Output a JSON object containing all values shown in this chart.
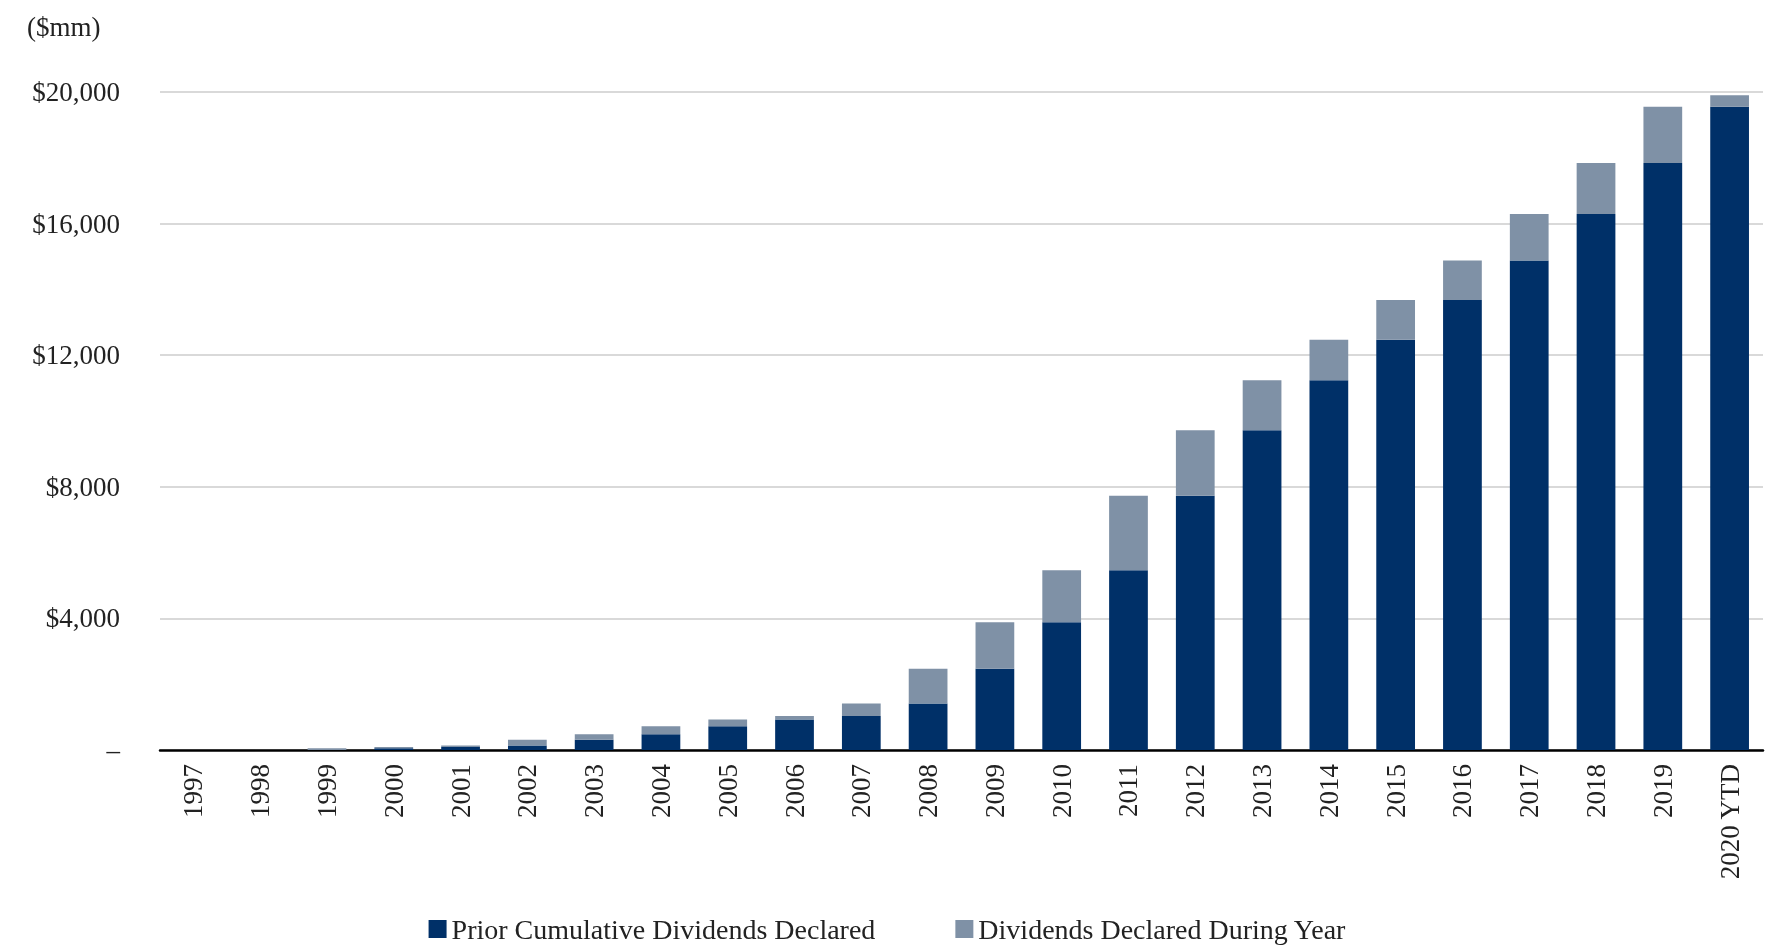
{
  "chart_data": {
    "type": "bar",
    "stacked": true,
    "ylabel": "($mm)",
    "categories": [
      "1997",
      "1998",
      "1999",
      "2000",
      "2001",
      "2002",
      "2003",
      "2004",
      "2005",
      "2006",
      "2007",
      "2008",
      "2009",
      "2010",
      "2011",
      "2012",
      "2013",
      "2014",
      "2015",
      "2016",
      "2017",
      "2018",
      "2019",
      "2020 YTD"
    ],
    "series": [
      {
        "name": "Prior Cumulative Dividends Declared",
        "color": "#003068",
        "values": [
          0,
          0,
          0,
          50,
          90,
          140,
          310,
          480,
          720,
          930,
          1030,
          1410,
          2470,
          3880,
          5460,
          7730,
          9720,
          11240,
          12470,
          13680,
          14880,
          16290,
          17840,
          19550
        ]
      },
      {
        "name": "Dividends Declared During Year",
        "color": "#7f91a6",
        "values": [
          0,
          0,
          50,
          40,
          50,
          170,
          170,
          240,
          210,
          100,
          380,
          1060,
          1410,
          1580,
          2270,
          1990,
          1520,
          1230,
          1210,
          1200,
          1410,
          1550,
          1710,
          350
        ]
      }
    ],
    "ylim": [
      0,
      20000
    ],
    "yticks": [
      {
        "value": 0,
        "label": "–"
      },
      {
        "value": 4000,
        "label": "$4,000"
      },
      {
        "value": 8000,
        "label": "$8,000"
      },
      {
        "value": 12000,
        "label": "$12,000"
      },
      {
        "value": 16000,
        "label": "$16,000"
      },
      {
        "value": 20000,
        "label": "$20,000"
      }
    ],
    "grid": "y",
    "legend": "bottom"
  }
}
